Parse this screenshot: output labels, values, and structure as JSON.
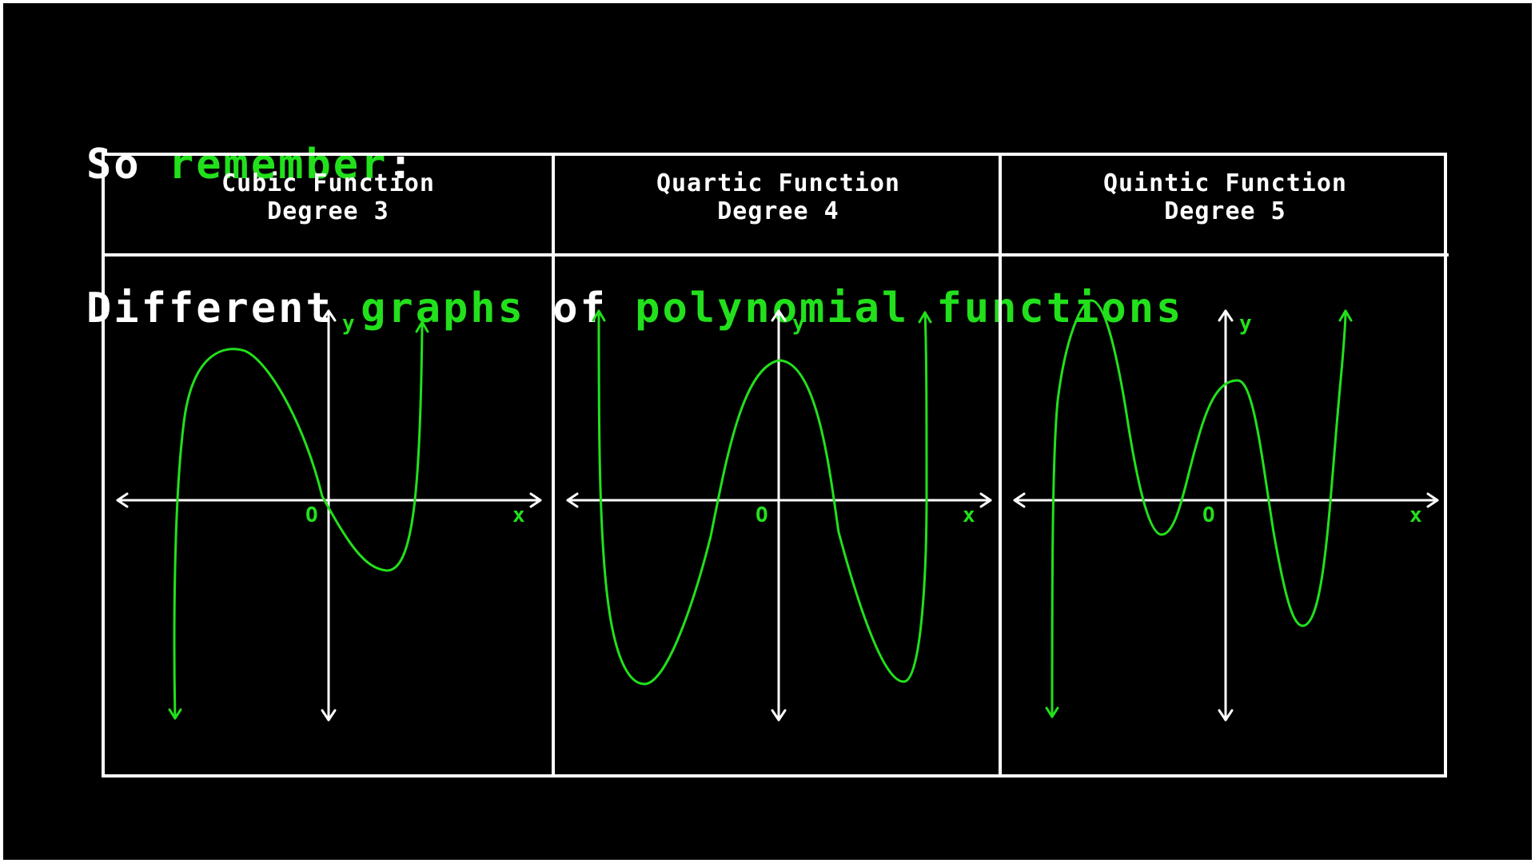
{
  "heading": {
    "line1": [
      {
        "text": "So ",
        "highlight": false
      },
      {
        "text": "remember",
        "highlight": true
      },
      {
        "text": ":",
        "highlight": false
      }
    ],
    "line2": [
      {
        "text": "Different ",
        "highlight": false
      },
      {
        "text": "graphs",
        "highlight": true
      },
      {
        "text": " of ",
        "highlight": false
      },
      {
        "text": "polynomial",
        "highlight": true
      },
      {
        "text": " ",
        "highlight": false
      },
      {
        "text": "functions",
        "highlight": true
      }
    ]
  },
  "colors": {
    "background": "#000000",
    "text": "#ffffff",
    "highlight": "#22e01c",
    "axis": "#ffffff",
    "curve": "#22e01c"
  },
  "graphs": [
    {
      "title": "Cubic Function",
      "subtitle": "Degree 3",
      "origin_label": "O",
      "x_label": "x",
      "y_label": "y"
    },
    {
      "title": "Quartic Function",
      "subtitle": "Degree 4",
      "origin_label": "O",
      "x_label": "x",
      "y_label": "y"
    },
    {
      "title": "Quintic Function",
      "subtitle": "Degree 5",
      "origin_label": "O",
      "x_label": "x",
      "y_label": "y"
    }
  ]
}
